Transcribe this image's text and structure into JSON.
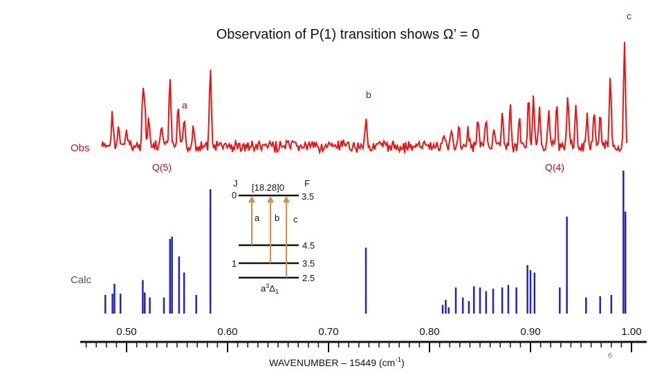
{
  "slide": {
    "title": "Observation of P(1) transition shows Ω’ = 0",
    "page_number": "6"
  },
  "chart_data": {
    "type": "line",
    "title": "Observation of P(1) transition shows Ω’ = 0",
    "xlabel": "WAVENUMBER – 15449 (cm",
    "xlabel_sup": "-1",
    "xlabel_tail": ")",
    "xlim": [
      0.455,
      1.01
    ],
    "x_ticks": [
      0.5,
      0.6,
      0.7,
      0.8,
      0.9,
      1.0
    ],
    "x_tick_labels": [
      "0.50",
      "0.60",
      "0.70",
      "0.80",
      "0.90",
      "1.00"
    ],
    "minor_tick_step": 0.01,
    "series": [
      {
        "name": "Obs",
        "color": "#ee1111",
        "peaks": [
          {
            "x": 0.486,
            "h": 0.48
          },
          {
            "x": 0.492,
            "h": 0.28
          },
          {
            "x": 0.5,
            "h": 0.25
          },
          {
            "x": 0.516,
            "h": 0.78
          },
          {
            "x": 0.518,
            "h": 0.55
          },
          {
            "x": 0.522,
            "h": 0.38
          },
          {
            "x": 0.535,
            "h": 0.3
          },
          {
            "x": 0.543,
            "h": 0.98
          },
          {
            "x": 0.551,
            "h": 0.55
          },
          {
            "x": 0.557,
            "h": 0.42
          },
          {
            "x": 0.566,
            "h": 0.35
          },
          {
            "x": 0.583,
            "h": 1.12
          },
          {
            "x": 0.737,
            "h": 0.45
          },
          {
            "x": 0.814,
            "h": 0.22
          },
          {
            "x": 0.822,
            "h": 0.28
          },
          {
            "x": 0.829,
            "h": 0.32
          },
          {
            "x": 0.838,
            "h": 0.25
          },
          {
            "x": 0.848,
            "h": 0.4
          },
          {
            "x": 0.856,
            "h": 0.38
          },
          {
            "x": 0.864,
            "h": 0.3
          },
          {
            "x": 0.872,
            "h": 0.48
          },
          {
            "x": 0.88,
            "h": 0.55
          },
          {
            "x": 0.889,
            "h": 0.4
          },
          {
            "x": 0.898,
            "h": 0.75
          },
          {
            "x": 0.903,
            "h": 0.7
          },
          {
            "x": 0.909,
            "h": 0.5
          },
          {
            "x": 0.918,
            "h": 0.6
          },
          {
            "x": 0.926,
            "h": 0.65
          },
          {
            "x": 0.937,
            "h": 0.8
          },
          {
            "x": 0.945,
            "h": 0.55
          },
          {
            "x": 0.956,
            "h": 0.5
          },
          {
            "x": 0.963,
            "h": 0.58
          },
          {
            "x": 0.969,
            "h": 0.45
          },
          {
            "x": 0.979,
            "h": 0.95
          },
          {
            "x": 0.993,
            "h": 1.45
          }
        ]
      },
      {
        "name": "Calc",
        "color": "#2222bb",
        "lines": [
          {
            "x": 0.479,
            "h": 0.15
          },
          {
            "x": 0.486,
            "h": 0.16
          },
          {
            "x": 0.488,
            "h": 0.24
          },
          {
            "x": 0.494,
            "h": 0.16
          },
          {
            "x": 0.516,
            "h": 0.27
          },
          {
            "x": 0.518,
            "h": 0.17
          },
          {
            "x": 0.523,
            "h": 0.13
          },
          {
            "x": 0.537,
            "h": 0.13
          },
          {
            "x": 0.543,
            "h": 0.6
          },
          {
            "x": 0.545,
            "h": 0.62
          },
          {
            "x": 0.552,
            "h": 0.46
          },
          {
            "x": 0.557,
            "h": 0.33
          },
          {
            "x": 0.569,
            "h": 0.15
          },
          {
            "x": 0.583,
            "h": 1.0
          },
          {
            "x": 0.737,
            "h": 0.53
          },
          {
            "x": 0.813,
            "h": 0.07
          },
          {
            "x": 0.816,
            "h": 0.11
          },
          {
            "x": 0.819,
            "h": 0.05
          },
          {
            "x": 0.826,
            "h": 0.21
          },
          {
            "x": 0.833,
            "h": 0.13
          },
          {
            "x": 0.839,
            "h": 0.1
          },
          {
            "x": 0.844,
            "h": 0.22
          },
          {
            "x": 0.85,
            "h": 0.21
          },
          {
            "x": 0.856,
            "h": 0.18
          },
          {
            "x": 0.863,
            "h": 0.2
          },
          {
            "x": 0.872,
            "h": 0.21
          },
          {
            "x": 0.878,
            "h": 0.23
          },
          {
            "x": 0.886,
            "h": 0.21
          },
          {
            "x": 0.897,
            "h": 0.39
          },
          {
            "x": 0.9,
            "h": 0.35
          },
          {
            "x": 0.904,
            "h": 0.33
          },
          {
            "x": 0.929,
            "h": 0.21
          },
          {
            "x": 0.936,
            "h": 0.78
          },
          {
            "x": 0.955,
            "h": 0.13
          },
          {
            "x": 0.969,
            "h": 0.14
          },
          {
            "x": 0.98,
            "h": 0.15
          },
          {
            "x": 0.992,
            "h": 1.15
          },
          {
            "x": 0.994,
            "h": 0.82
          }
        ]
      }
    ],
    "annotations": {
      "a": "a",
      "b": "b",
      "c": "c",
      "q5": "Q(5)",
      "q4": "Q(4)"
    }
  },
  "energy_diagram": {
    "upper_state": "[18.28]0",
    "j_header": "J",
    "f_header": "F",
    "j_upper": "0",
    "f_upper": "3.5",
    "j_lower": "1",
    "f_lower_levels": [
      "4.5",
      "3.5",
      "2.5"
    ],
    "lower_state": "a",
    "lower_state_sup": "3",
    "lower_state_mid": "Δ",
    "lower_state_sub": "1",
    "transition_labels": [
      "a",
      "b",
      "c"
    ],
    "arrow_color": "#d98a4a"
  }
}
